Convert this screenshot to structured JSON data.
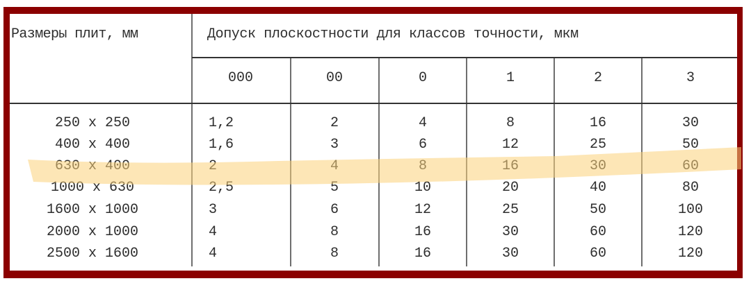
{
  "colors": {
    "frame": "#8b0000",
    "highlight": "#fcd27a"
  },
  "header": {
    "size_col": "Размеры плит, мм",
    "tolerance_group": "Допуск плоскостности для классов точности, мкм",
    "classes": [
      "000",
      "00",
      "0",
      "1",
      "2",
      "3"
    ]
  },
  "highlighted_row": 2,
  "rows": [
    {
      "size": "250 x 250",
      "values": [
        "1,2",
        "2",
        "4",
        "8",
        "16",
        "30"
      ]
    },
    {
      "size": "400 x 400",
      "values": [
        "1,6",
        "3",
        "6",
        "12",
        "25",
        "50"
      ]
    },
    {
      "size": "630 x 400",
      "values": [
        "2",
        "4",
        "8",
        "16",
        "30",
        "60"
      ]
    },
    {
      "size": "1000 x 630",
      "values": [
        "2,5",
        "5",
        "10",
        "20",
        "40",
        "80"
      ]
    },
    {
      "size": "1600 x 1000",
      "values": [
        "3",
        "6",
        "12",
        "25",
        "50",
        "100"
      ]
    },
    {
      "size": "2000 x 1000",
      "values": [
        "4",
        "8",
        "16",
        "30",
        "60",
        "120"
      ]
    },
    {
      "size": "2500 x 1600",
      "values": [
        "4",
        "8",
        "16",
        "30",
        "60",
        "120"
      ]
    }
  ]
}
